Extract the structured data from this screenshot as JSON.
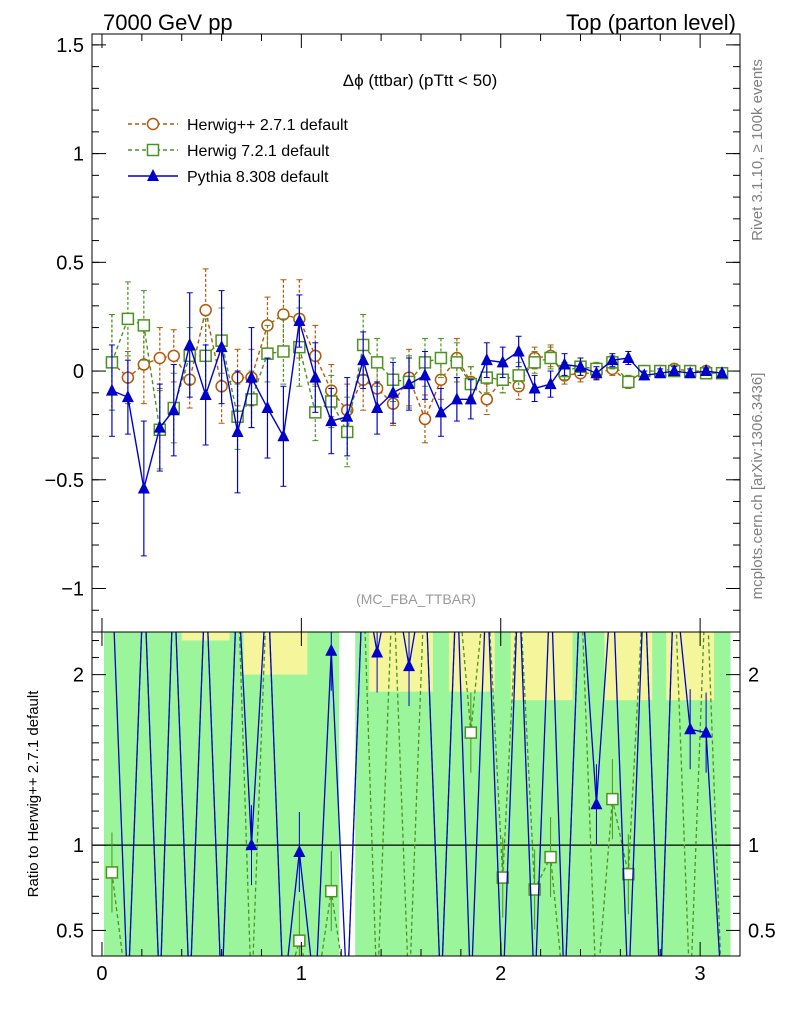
{
  "header": {
    "left": "7000 GeV pp",
    "right": "Top (parton level)"
  },
  "side_text": {
    "rivet": "Rivet 3.1.10, ≥ 100k events",
    "mcplots": "mcplots.cern.ch [arXiv:1306.3436]"
  },
  "chart_data": [
    {
      "type": "line",
      "title": "Δϕ (ttbar) (pTtt < 50)",
      "watermark": "(MC_FBA_TTBAR)",
      "xlim": [
        -0.05,
        3.2
      ],
      "ylim": [
        -1.2,
        1.55
      ],
      "x_ticks": [
        0,
        1,
        2,
        3
      ],
      "y_ticks": [
        -1,
        -0.5,
        0,
        0.5,
        1,
        1.5
      ],
      "y_tick_labels": [
        "−1",
        "−0.5",
        "0",
        "0.5",
        "1",
        "1.5"
      ],
      "legend_position": "top-left",
      "series": [
        {
          "name": "Herwig++ 2.7.1 default",
          "color": "#b35806",
          "marker": "open-circle",
          "x": [
            0.05,
            0.13,
            0.21,
            0.29,
            0.36,
            0.44,
            0.52,
            0.6,
            0.68,
            0.75,
            0.83,
            0.91,
            0.99,
            1.07,
            1.15,
            1.23,
            1.31,
            1.38,
            1.46,
            1.54,
            1.62,
            1.7,
            1.78,
            1.85,
            1.93,
            2.01,
            2.09,
            2.17,
            2.25,
            2.32,
            2.4,
            2.48,
            2.56,
            2.64,
            2.72,
            2.8,
            2.87,
            2.95,
            3.03,
            3.11
          ],
          "y": [
            0.04,
            -0.03,
            0.03,
            0.06,
            0.07,
            -0.04,
            0.28,
            -0.07,
            -0.03,
            -0.03,
            0.21,
            0.26,
            0.24,
            0.07,
            -0.09,
            -0.18,
            -0.04,
            -0.08,
            -0.15,
            -0.03,
            -0.22,
            -0.04,
            0.06,
            -0.05,
            -0.13,
            -0.04,
            -0.07,
            0.06,
            0.07,
            -0.02,
            -0.01,
            -0.01,
            0.01,
            -0.05,
            0.0,
            0.0,
            0.01,
            0.0,
            0.0,
            -0.01
          ],
          "err": [
            0.22,
            0.12,
            0.18,
            0.14,
            0.12,
            0.13,
            0.19,
            0.17,
            0.13,
            0.13,
            0.13,
            0.16,
            0.18,
            0.14,
            0.12,
            0.12,
            0.14,
            0.11,
            0.1,
            0.13,
            0.11,
            0.09,
            0.09,
            0.07,
            0.07,
            0.06,
            0.06,
            0.05,
            0.05,
            0.04,
            0.04,
            0.03,
            0.03,
            0.03,
            0.02,
            0.02,
            0.02,
            0.02,
            0.01,
            0.01
          ]
        },
        {
          "name": "Herwig 7.2.1 default",
          "color": "#4d9221",
          "marker": "open-square",
          "x": [
            0.05,
            0.13,
            0.21,
            0.29,
            0.36,
            0.44,
            0.52,
            0.6,
            0.68,
            0.75,
            0.83,
            0.91,
            0.99,
            1.07,
            1.15,
            1.23,
            1.31,
            1.38,
            1.46,
            1.54,
            1.62,
            1.7,
            1.78,
            1.85,
            1.93,
            2.01,
            2.09,
            2.17,
            2.25,
            2.32,
            2.4,
            2.48,
            2.56,
            2.64,
            2.72,
            2.8,
            2.87,
            2.95,
            3.03,
            3.11
          ],
          "y": [
            0.04,
            0.24,
            0.21,
            -0.27,
            -0.17,
            0.07,
            0.07,
            0.14,
            -0.21,
            -0.13,
            0.08,
            0.09,
            0.11,
            -0.19,
            -0.14,
            -0.28,
            0.12,
            0.04,
            -0.04,
            -0.05,
            0.04,
            0.06,
            0.04,
            -0.06,
            -0.03,
            -0.04,
            -0.02,
            0.04,
            0.06,
            0.0,
            0.02,
            0.01,
            0.04,
            -0.05,
            0.0,
            0.0,
            0.0,
            0.0,
            -0.01,
            -0.01
          ],
          "err": [
            0.22,
            0.17,
            0.16,
            0.18,
            0.16,
            0.13,
            0.17,
            0.15,
            0.15,
            0.13,
            0.13,
            0.15,
            0.18,
            0.13,
            0.12,
            0.16,
            0.14,
            0.11,
            0.1,
            0.12,
            0.11,
            0.09,
            0.09,
            0.08,
            0.07,
            0.06,
            0.06,
            0.05,
            0.05,
            0.04,
            0.04,
            0.03,
            0.03,
            0.03,
            0.02,
            0.02,
            0.02,
            0.02,
            0.01,
            0.01
          ]
        },
        {
          "name": "Pythia 8.308 default",
          "color": "#0000cc",
          "marker": "filled-triangle",
          "x": [
            0.05,
            0.13,
            0.21,
            0.29,
            0.36,
            0.44,
            0.52,
            0.6,
            0.68,
            0.75,
            0.83,
            0.91,
            0.99,
            1.07,
            1.15,
            1.23,
            1.31,
            1.38,
            1.46,
            1.54,
            1.62,
            1.7,
            1.78,
            1.85,
            1.93,
            2.01,
            2.09,
            2.17,
            2.25,
            2.32,
            2.4,
            2.48,
            2.56,
            2.64,
            2.72,
            2.8,
            2.87,
            2.95,
            3.03,
            3.11
          ],
          "y": [
            -0.09,
            -0.12,
            -0.54,
            -0.26,
            -0.18,
            0.12,
            -0.11,
            0.11,
            -0.28,
            -0.03,
            -0.17,
            -0.3,
            0.23,
            -0.03,
            -0.23,
            -0.21,
            0.05,
            -0.17,
            -0.1,
            -0.06,
            -0.02,
            -0.19,
            -0.13,
            -0.13,
            0.05,
            0.04,
            0.09,
            -0.08,
            -0.06,
            0.03,
            0.02,
            -0.01,
            0.05,
            0.06,
            -0.02,
            -0.01,
            0.0,
            -0.01,
            0.0,
            -0.01
          ],
          "err": [
            0.21,
            0.17,
            0.31,
            0.2,
            0.21,
            0.24,
            0.23,
            0.26,
            0.28,
            0.23,
            0.23,
            0.23,
            0.12,
            0.16,
            0.15,
            0.18,
            0.13,
            0.12,
            0.14,
            0.12,
            0.11,
            0.11,
            0.1,
            0.09,
            0.08,
            0.07,
            0.07,
            0.06,
            0.06,
            0.05,
            0.04,
            0.03,
            0.03,
            0.03,
            0.02,
            0.02,
            0.02,
            0.02,
            0.01,
            0.01
          ]
        }
      ]
    },
    {
      "type": "line",
      "ylabel": "Ratio to Herwig++ 2.7.1 default",
      "xlim": [
        -0.05,
        3.2
      ],
      "ylim": [
        0.35,
        2.25
      ],
      "x_ticks": [
        0,
        1,
        2,
        3
      ],
      "x_tick_labels": [
        "0",
        "1",
        "2",
        "3"
      ],
      "y_ticks": [
        0.5,
        1,
        2
      ],
      "y_tick_labels": [
        "0.5",
        "1",
        "2"
      ],
      "band_colors": {
        "stat": "#9bf59b",
        "syst": "#f5f59b"
      },
      "green_band": [
        [
          0.35,
          2.25
        ],
        [
          0.35,
          2.25
        ],
        [
          0.35,
          2.25
        ],
        [
          0.35,
          2.25
        ],
        [
          0.35,
          2.25
        ],
        [
          0.35,
          2.25
        ],
        [
          0.35,
          2.25
        ],
        [
          0.35,
          2.25
        ],
        [
          0.35,
          2.25
        ],
        [
          0.35,
          2.25
        ],
        [
          0.35,
          2.25
        ],
        [
          0.35,
          2.25
        ],
        [
          0.35,
          2.25
        ],
        [
          0.35,
          2.25
        ],
        [
          0.35,
          2.25
        ],
        [
          0.35,
          2.25
        ],
        [
          0.35,
          2.25
        ],
        [
          0.35,
          2.25
        ],
        [
          0.35,
          2.25
        ],
        [
          0.35,
          2.25
        ],
        [
          0.35,
          2.25
        ],
        [
          0.35,
          2.25
        ],
        [
          0.35,
          2.25
        ],
        [
          0.35,
          2.25
        ],
        [
          0.35,
          2.25
        ],
        [
          0.35,
          2.25
        ],
        [
          0.35,
          2.25
        ],
        [
          0.35,
          2.25
        ],
        [
          0.35,
          2.25
        ],
        [
          0.35,
          2.25
        ],
        [
          0.35,
          2.25
        ],
        [
          0.35,
          2.25
        ],
        [
          0.35,
          2.25
        ],
        [
          0.35,
          2.25
        ],
        [
          0.35,
          2.25
        ],
        [
          0.35,
          2.25
        ],
        [
          0.35,
          2.25
        ],
        [
          0.35,
          2.25
        ],
        [
          0.35,
          2.25
        ],
        [
          0.35,
          2.25
        ]
      ],
      "ref_line": 1,
      "series": [
        {
          "name": "Herwig 7.2.1 default",
          "color": "#4d9221",
          "marker": "open-square",
          "visible_points": [
            [
              0.05,
              0.84
            ],
            [
              1.15,
              0.73
            ],
            [
              0.99,
              0.44
            ],
            [
              1.85,
              1.66
            ],
            [
              2.01,
              0.81
            ],
            [
              2.17,
              0.74
            ],
            [
              2.25,
              0.93
            ],
            [
              2.56,
              1.27
            ],
            [
              2.64,
              0.83
            ]
          ]
        },
        {
          "name": "Pythia 8.308 default",
          "color": "#0000cc",
          "marker": "filled-triangle",
          "visible_points": [
            [
              0.75,
              1.0
            ],
            [
              0.99,
              0.96
            ],
            [
              1.15,
              2.14
            ],
            [
              1.38,
              2.13
            ],
            [
              1.54,
              2.05
            ],
            [
              2.48,
              1.24
            ],
            [
              2.95,
              1.68
            ],
            [
              3.03,
              1.66
            ]
          ]
        }
      ]
    }
  ]
}
